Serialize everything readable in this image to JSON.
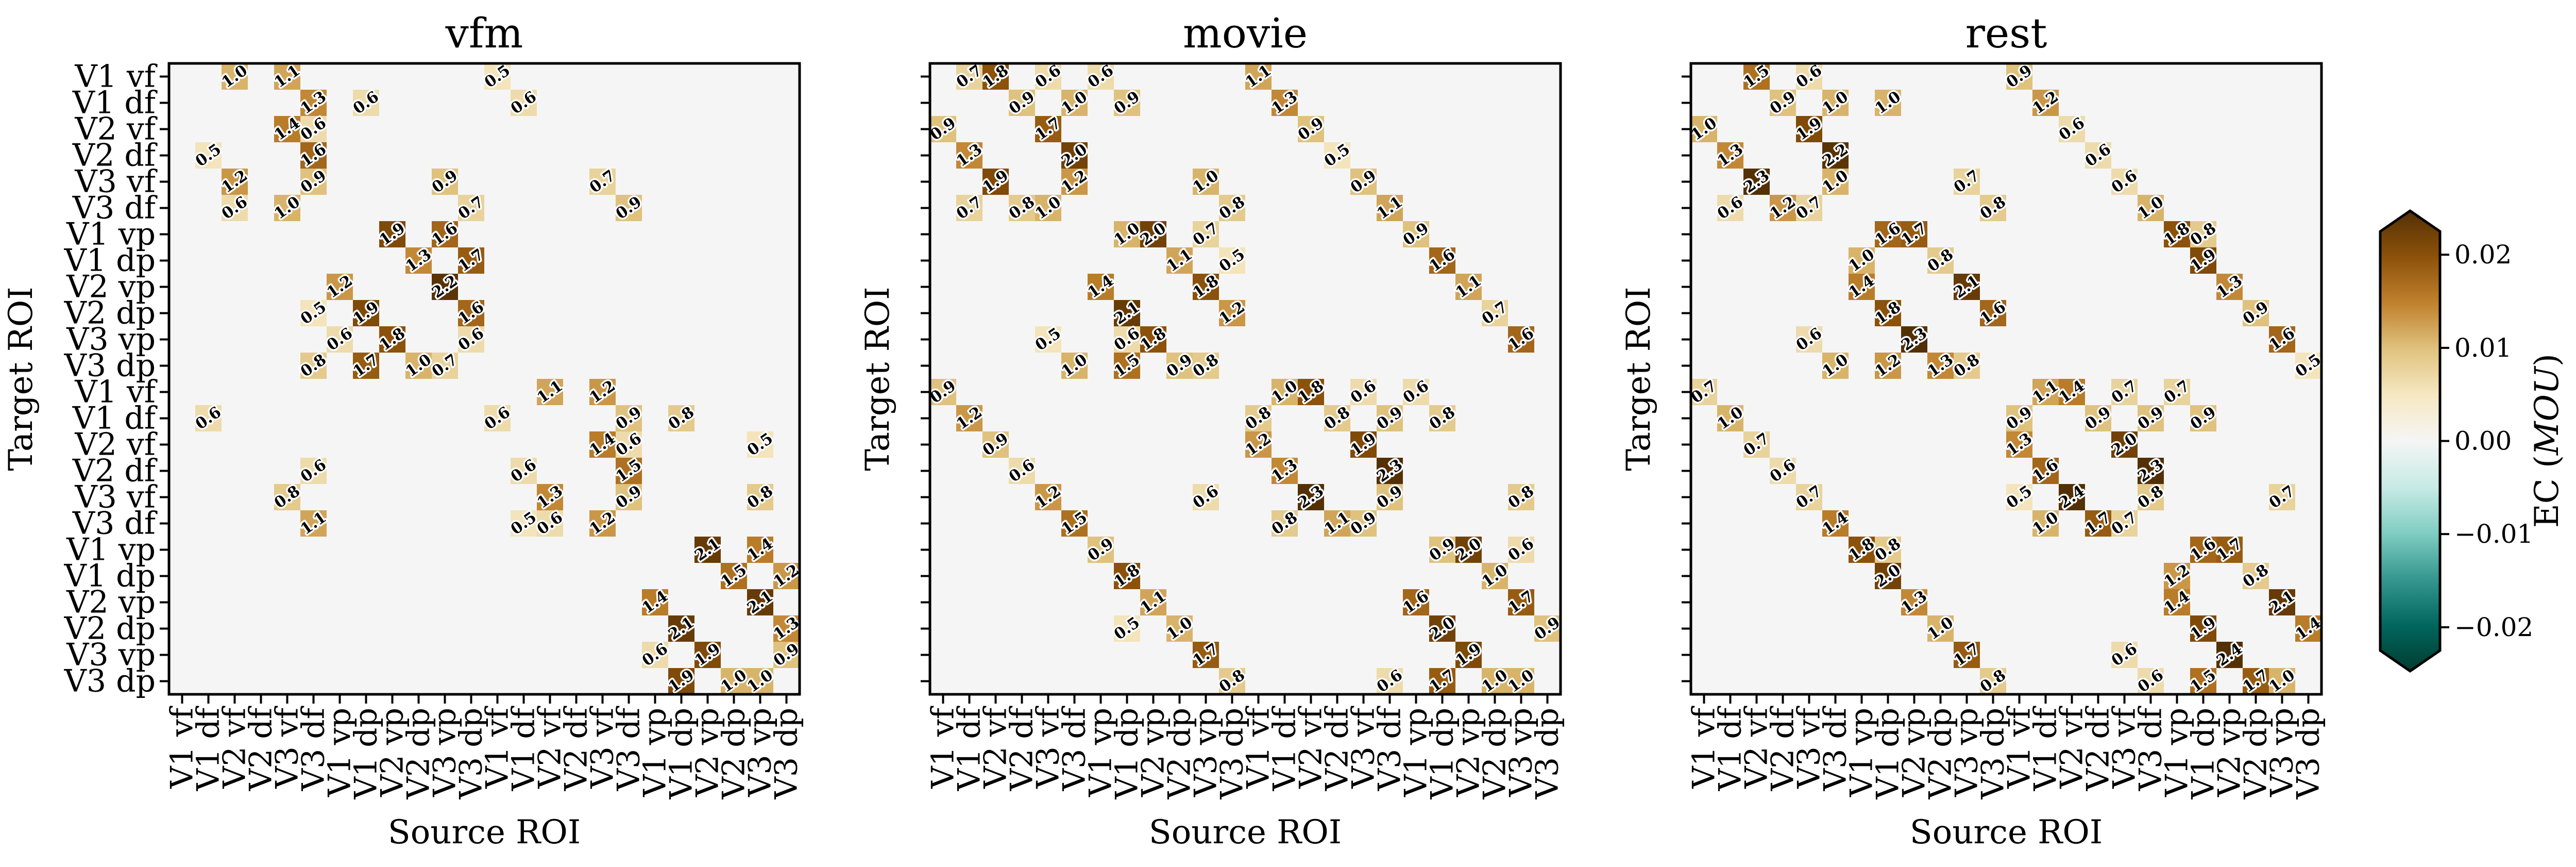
{
  "chart_data": [
    {
      "type": "heatmap",
      "title": "vfm",
      "xlabel": "Source ROI",
      "ylabel": "Target ROI",
      "show_y_tick_labels": true,
      "annotations": [
        [
          0,
          2,
          1.0
        ],
        [
          0,
          4,
          1.1
        ],
        [
          0,
          12,
          0.5
        ],
        [
          1,
          5,
          1.3
        ],
        [
          1,
          7,
          0.6
        ],
        [
          1,
          13,
          0.6
        ],
        [
          2,
          4,
          1.4
        ],
        [
          2,
          5,
          0.6
        ],
        [
          3,
          1,
          0.5
        ],
        [
          3,
          5,
          1.6
        ],
        [
          4,
          2,
          1.2
        ],
        [
          4,
          5,
          0.9
        ],
        [
          4,
          10,
          0.9
        ],
        [
          4,
          16,
          0.7
        ],
        [
          5,
          2,
          0.6
        ],
        [
          5,
          4,
          1.0
        ],
        [
          5,
          11,
          0.7
        ],
        [
          5,
          17,
          0.9
        ],
        [
          6,
          8,
          1.9
        ],
        [
          6,
          10,
          1.6
        ],
        [
          7,
          9,
          1.3
        ],
        [
          7,
          11,
          1.7
        ],
        [
          8,
          6,
          1.2
        ],
        [
          8,
          10,
          2.2
        ],
        [
          9,
          5,
          0.5
        ],
        [
          9,
          7,
          1.9
        ],
        [
          9,
          11,
          1.6
        ],
        [
          10,
          6,
          0.6
        ],
        [
          10,
          8,
          1.8
        ],
        [
          10,
          11,
          0.6
        ],
        [
          11,
          5,
          0.8
        ],
        [
          11,
          7,
          1.7
        ],
        [
          11,
          9,
          1.0
        ],
        [
          11,
          10,
          0.7
        ],
        [
          12,
          14,
          1.1
        ],
        [
          12,
          16,
          1.2
        ],
        [
          13,
          1,
          0.6
        ],
        [
          13,
          12,
          0.6
        ],
        [
          13,
          17,
          0.9
        ],
        [
          13,
          19,
          0.8
        ],
        [
          14,
          16,
          1.4
        ],
        [
          14,
          17,
          0.6
        ],
        [
          14,
          22,
          0.5
        ],
        [
          15,
          5,
          0.6
        ],
        [
          15,
          13,
          0.6
        ],
        [
          15,
          17,
          1.5
        ],
        [
          16,
          4,
          0.8
        ],
        [
          16,
          14,
          1.3
        ],
        [
          16,
          17,
          0.9
        ],
        [
          16,
          22,
          0.8
        ],
        [
          17,
          5,
          1.1
        ],
        [
          17,
          13,
          0.5
        ],
        [
          17,
          14,
          0.6
        ],
        [
          17,
          16,
          1.2
        ],
        [
          18,
          20,
          2.1
        ],
        [
          18,
          22,
          1.4
        ],
        [
          19,
          21,
          1.5
        ],
        [
          19,
          23,
          1.2
        ],
        [
          20,
          18,
          1.4
        ],
        [
          20,
          22,
          2.1
        ],
        [
          21,
          19,
          2.1
        ],
        [
          21,
          23,
          1.3
        ],
        [
          22,
          18,
          0.6
        ],
        [
          22,
          20,
          1.9
        ],
        [
          22,
          23,
          0.9
        ],
        [
          23,
          19,
          1.9
        ],
        [
          23,
          21,
          1.0
        ],
        [
          23,
          22,
          1.0
        ]
      ]
    },
    {
      "type": "heatmap",
      "title": "movie",
      "xlabel": "Source ROI",
      "ylabel": "Target ROI",
      "show_y_tick_labels": false,
      "annotations": [
        [
          0,
          1,
          0.7
        ],
        [
          0,
          2,
          1.8
        ],
        [
          0,
          4,
          0.6
        ],
        [
          0,
          6,
          0.6
        ],
        [
          0,
          12,
          1.1
        ],
        [
          1,
          3,
          0.9
        ],
        [
          1,
          5,
          1.0
        ],
        [
          1,
          7,
          0.9
        ],
        [
          1,
          13,
          1.3
        ],
        [
          2,
          0,
          0.9
        ],
        [
          2,
          4,
          1.7
        ],
        [
          2,
          14,
          0.9
        ],
        [
          3,
          1,
          1.3
        ],
        [
          3,
          5,
          2.0
        ],
        [
          3,
          15,
          0.5
        ],
        [
          4,
          2,
          1.9
        ],
        [
          4,
          5,
          1.2
        ],
        [
          4,
          10,
          1.0
        ],
        [
          4,
          16,
          0.9
        ],
        [
          5,
          1,
          0.7
        ],
        [
          5,
          3,
          0.8
        ],
        [
          5,
          4,
          1.0
        ],
        [
          5,
          11,
          0.8
        ],
        [
          5,
          17,
          1.1
        ],
        [
          6,
          7,
          1.0
        ],
        [
          6,
          8,
          2.0
        ],
        [
          6,
          10,
          0.7
        ],
        [
          6,
          18,
          0.9
        ],
        [
          7,
          9,
          1.1
        ],
        [
          7,
          11,
          0.5
        ],
        [
          7,
          19,
          1.6
        ],
        [
          8,
          6,
          1.4
        ],
        [
          8,
          10,
          1.8
        ],
        [
          8,
          20,
          1.1
        ],
        [
          9,
          7,
          2.1
        ],
        [
          9,
          11,
          1.2
        ],
        [
          9,
          21,
          0.7
        ],
        [
          10,
          4,
          0.5
        ],
        [
          10,
          7,
          0.6
        ],
        [
          10,
          8,
          1.8
        ],
        [
          10,
          22,
          1.6
        ],
        [
          11,
          5,
          1.0
        ],
        [
          11,
          7,
          1.5
        ],
        [
          11,
          9,
          0.9
        ],
        [
          11,
          10,
          0.8
        ],
        [
          12,
          0,
          0.9
        ],
        [
          12,
          13,
          1.0
        ],
        [
          12,
          14,
          1.8
        ],
        [
          12,
          16,
          0.6
        ],
        [
          12,
          18,
          0.6
        ],
        [
          13,
          1,
          1.2
        ],
        [
          13,
          12,
          0.8
        ],
        [
          13,
          15,
          0.8
        ],
        [
          13,
          17,
          0.9
        ],
        [
          13,
          19,
          0.8
        ],
        [
          14,
          2,
          0.9
        ],
        [
          14,
          12,
          1.2
        ],
        [
          14,
          16,
          1.9
        ],
        [
          15,
          3,
          0.6
        ],
        [
          15,
          13,
          1.3
        ],
        [
          15,
          17,
          2.3
        ],
        [
          16,
          4,
          1.2
        ],
        [
          16,
          10,
          0.6
        ],
        [
          16,
          14,
          2.3
        ],
        [
          16,
          17,
          0.9
        ],
        [
          16,
          22,
          0.8
        ],
        [
          17,
          5,
          1.5
        ],
        [
          17,
          13,
          0.8
        ],
        [
          17,
          15,
          1.1
        ],
        [
          17,
          16,
          0.9
        ],
        [
          18,
          6,
          0.9
        ],
        [
          18,
          19,
          0.9
        ],
        [
          18,
          20,
          2.0
        ],
        [
          18,
          22,
          0.6
        ],
        [
          19,
          7,
          1.8
        ],
        [
          19,
          21,
          1.0
        ],
        [
          20,
          8,
          1.1
        ],
        [
          20,
          18,
          1.6
        ],
        [
          20,
          22,
          1.7
        ],
        [
          21,
          7,
          0.5
        ],
        [
          21,
          9,
          1.0
        ],
        [
          21,
          19,
          2.0
        ],
        [
          21,
          23,
          0.9
        ],
        [
          22,
          10,
          1.7
        ],
        [
          22,
          20,
          1.9
        ],
        [
          23,
          11,
          0.8
        ],
        [
          23,
          17,
          0.6
        ],
        [
          23,
          19,
          1.7
        ],
        [
          23,
          21,
          1.0
        ],
        [
          23,
          22,
          1.0
        ]
      ]
    },
    {
      "type": "heatmap",
      "title": "rest",
      "xlabel": "Source ROI",
      "ylabel": "Target ROI",
      "show_y_tick_labels": false,
      "annotations": [
        [
          0,
          2,
          1.5
        ],
        [
          0,
          4,
          0.6
        ],
        [
          0,
          12,
          0.9
        ],
        [
          1,
          3,
          0.9
        ],
        [
          1,
          5,
          1.0
        ],
        [
          1,
          7,
          1.0
        ],
        [
          1,
          13,
          1.2
        ],
        [
          2,
          0,
          1.0
        ],
        [
          2,
          4,
          1.9
        ],
        [
          2,
          14,
          0.6
        ],
        [
          3,
          1,
          1.3
        ],
        [
          3,
          5,
          2.2
        ],
        [
          3,
          15,
          0.6
        ],
        [
          4,
          2,
          2.3
        ],
        [
          4,
          5,
          1.0
        ],
        [
          4,
          10,
          0.7
        ],
        [
          4,
          16,
          0.6
        ],
        [
          5,
          1,
          0.6
        ],
        [
          5,
          3,
          1.2
        ],
        [
          5,
          4,
          0.7
        ],
        [
          5,
          11,
          0.8
        ],
        [
          5,
          17,
          1.0
        ],
        [
          6,
          7,
          1.6
        ],
        [
          6,
          8,
          1.7
        ],
        [
          6,
          18,
          1.8
        ],
        [
          6,
          19,
          0.8
        ],
        [
          7,
          6,
          1.0
        ],
        [
          7,
          9,
          0.8
        ],
        [
          7,
          19,
          1.9
        ],
        [
          8,
          6,
          1.4
        ],
        [
          8,
          10,
          2.1
        ],
        [
          8,
          20,
          1.3
        ],
        [
          9,
          7,
          1.8
        ],
        [
          9,
          11,
          1.6
        ],
        [
          9,
          21,
          0.9
        ],
        [
          10,
          4,
          0.6
        ],
        [
          10,
          8,
          2.3
        ],
        [
          10,
          22,
          1.6
        ],
        [
          11,
          5,
          1.0
        ],
        [
          11,
          7,
          1.2
        ],
        [
          11,
          9,
          1.3
        ],
        [
          11,
          10,
          0.8
        ],
        [
          11,
          23,
          0.5
        ],
        [
          12,
          0,
          0.7
        ],
        [
          12,
          13,
          1.1
        ],
        [
          12,
          14,
          1.4
        ],
        [
          12,
          16,
          0.7
        ],
        [
          12,
          18,
          0.7
        ],
        [
          13,
          1,
          1.0
        ],
        [
          13,
          12,
          0.9
        ],
        [
          13,
          15,
          0.9
        ],
        [
          13,
          17,
          0.9
        ],
        [
          13,
          19,
          0.9
        ],
        [
          14,
          2,
          0.7
        ],
        [
          14,
          12,
          1.3
        ],
        [
          14,
          16,
          2.0
        ],
        [
          15,
          3,
          0.6
        ],
        [
          15,
          13,
          1.6
        ],
        [
          15,
          17,
          2.3
        ],
        [
          16,
          4,
          0.7
        ],
        [
          16,
          12,
          0.5
        ],
        [
          16,
          14,
          2.4
        ],
        [
          16,
          17,
          0.8
        ],
        [
          16,
          22,
          0.7
        ],
        [
          17,
          5,
          1.4
        ],
        [
          17,
          13,
          1.0
        ],
        [
          17,
          15,
          1.7
        ],
        [
          17,
          16,
          0.7
        ],
        [
          18,
          6,
          1.8
        ],
        [
          18,
          7,
          0.8
        ],
        [
          18,
          19,
          1.6
        ],
        [
          18,
          20,
          1.7
        ],
        [
          19,
          7,
          2.0
        ],
        [
          19,
          18,
          1.2
        ],
        [
          19,
          21,
          0.8
        ],
        [
          20,
          8,
          1.3
        ],
        [
          20,
          18,
          1.4
        ],
        [
          20,
          22,
          2.1
        ],
        [
          21,
          9,
          1.0
        ],
        [
          21,
          19,
          1.9
        ],
        [
          21,
          23,
          1.4
        ],
        [
          22,
          10,
          1.7
        ],
        [
          22,
          16,
          0.6
        ],
        [
          22,
          20,
          2.4
        ],
        [
          23,
          11,
          0.8
        ],
        [
          23,
          17,
          0.6
        ],
        [
          23,
          19,
          1.5
        ],
        [
          23,
          21,
          1.7
        ],
        [
          23,
          22,
          1.0
        ]
      ]
    }
  ],
  "roi_labels": [
    "V1 vf",
    "V1 df",
    "V2 vf",
    "V2 df",
    "V3 vf",
    "V3 df",
    "V1 vp",
    "V1 dp",
    "V2 vp",
    "V2 dp",
    "V3 vp",
    "V3 dp",
    "V1 vf",
    "V1 df",
    "V2 vf",
    "V2 df",
    "V3 vf",
    "V3 df",
    "V1 vp",
    "V1 dp",
    "V2 vp",
    "V2 dp",
    "V3 vp",
    "V3 dp"
  ],
  "colorbar": {
    "label_prefix": "EC (",
    "label_italic": "MOU",
    "label_suffix": ")",
    "range": [
      -0.0225,
      0.0225
    ],
    "extend": "both",
    "colormap": "BrBG_r",
    "ticks": [
      "0.02",
      "0.01",
      "0.00",
      "−0.01",
      "−0.02"
    ],
    "tick_values": [
      0.02,
      0.01,
      0.0,
      -0.01,
      -0.02
    ]
  },
  "colors": {
    "stops": [
      "#543005",
      "#8c510a",
      "#bf812d",
      "#dfc27d",
      "#f6e8c3",
      "#f5f5f5",
      "#c7eae5",
      "#80cdc1",
      "#35978f",
      "#01665e",
      "#003c30"
    ]
  }
}
